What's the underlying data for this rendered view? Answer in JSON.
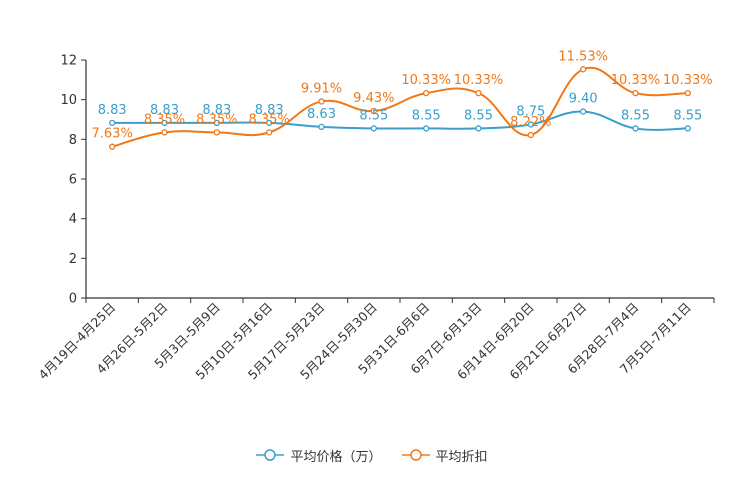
{
  "chart_data": {
    "type": "line",
    "categories": [
      "4月19日-4月25日",
      "4月26日-5月2日",
      "5月3日-5月9日",
      "5月10日-5月16日",
      "5月17日-5月23日",
      "5月24日-5月30日",
      "5月31日-6月6日",
      "6月7日-6月13日",
      "6月14日-6月20日",
      "6月21日-6月27日",
      "6月28日-7月4日",
      "7月5日-7月11日"
    ],
    "ylim": [
      0,
      12
    ],
    "yticks": [
      0,
      2,
      4,
      6,
      8,
      10,
      12
    ],
    "series": [
      {
        "name": "平均价格（万）",
        "color": "#3a9fcc",
        "values": [
          8.83,
          8.83,
          8.83,
          8.83,
          8.63,
          8.55,
          8.55,
          8.55,
          8.75,
          9.4,
          8.55,
          8.55
        ],
        "labels": [
          "8.83",
          "8.83",
          "8.83",
          "8.83",
          "8.63",
          "8.55",
          "8.55",
          "8.55",
          "8.75",
          "9.40",
          "8.55",
          "8.55"
        ]
      },
      {
        "name": "平均折扣",
        "color": "#f07818",
        "values": [
          7.63,
          8.35,
          8.35,
          8.35,
          9.91,
          9.43,
          10.33,
          10.33,
          8.22,
          11.53,
          10.33,
          10.33
        ],
        "labels": [
          "7.63%",
          "8.35%",
          "8.35%",
          "8.35%",
          "9.91%",
          "9.43%",
          "10.33%",
          "10.33%",
          "8.22%",
          "11.53%",
          "10.33%",
          "10.33%"
        ]
      }
    ]
  }
}
